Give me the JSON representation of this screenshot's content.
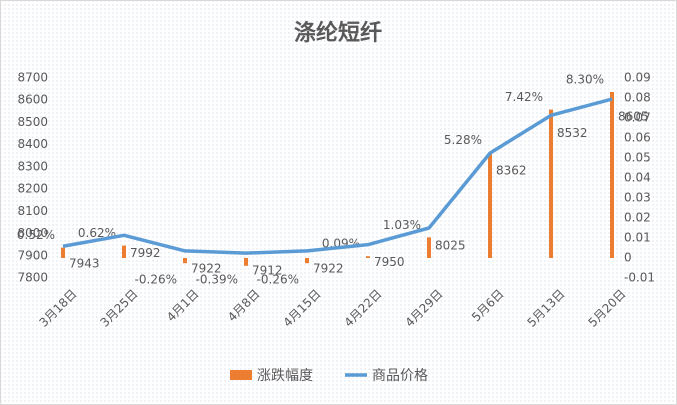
{
  "chart_data": {
    "type": "bar-line",
    "title": "涤纶短纤",
    "categories": [
      "3月18日",
      "3月25日",
      "4月1日",
      "4月8日",
      "4月15日",
      "4月22日",
      "4月29日",
      "5月6日",
      "5月13日",
      "5月20日"
    ],
    "series": [
      {
        "name": "涨跌幅度",
        "type": "bar",
        "axis": "y2",
        "color": "#ed7d31",
        "values": [
          0.0052,
          0.0062,
          -0.0026,
          -0.0039,
          -0.0026,
          0.0009,
          0.0103,
          0.0528,
          0.0742,
          0.083
        ],
        "value_labels": [
          "0.52%",
          "0.62%",
          "-0.26%",
          "-0.39%",
          "-0.26%",
          "0.09%",
          "1.03%",
          "5.28%",
          "7.42%",
          "8.30%"
        ]
      },
      {
        "name": "商品价格",
        "type": "line",
        "color": "#5b9bd5",
        "values": [
          7943,
          7992,
          7922,
          7912,
          7922,
          7950,
          8025,
          8362,
          8532,
          8605
        ]
      }
    ],
    "ylim": [
      7800,
      8700
    ],
    "yticks": [
      7800,
      7900,
      8000,
      8100,
      8200,
      8300,
      8400,
      8500,
      8600,
      8700
    ],
    "y2lim": [
      -0.01,
      0.09
    ],
    "y2ticks": [
      -0.01,
      0,
      0.01,
      0.02,
      0.03,
      0.04,
      0.05,
      0.06,
      0.07,
      0.08,
      0.09
    ],
    "legend": "bottom"
  }
}
